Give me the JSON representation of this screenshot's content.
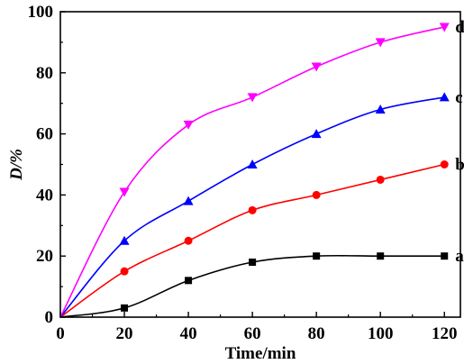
{
  "chart_data": {
    "type": "line",
    "xlabel": "Time/min",
    "ylabel": "D/%",
    "xlim": [
      0,
      125
    ],
    "ylim": [
      0,
      100
    ],
    "xticks": [
      0,
      20,
      40,
      60,
      80,
      100,
      120
    ],
    "yticks": [
      0,
      20,
      40,
      60,
      80,
      100
    ],
    "grid": false,
    "x": [
      0,
      20,
      40,
      60,
      80,
      100,
      120
    ],
    "series": [
      {
        "name": "a",
        "marker": "square",
        "color": "#000000",
        "values": [
          0,
          3,
          12,
          18,
          20,
          20,
          20
        ]
      },
      {
        "name": "b",
        "marker": "circle",
        "color": "#ff0000",
        "values": [
          0,
          15,
          25,
          35,
          40,
          45,
          50
        ]
      },
      {
        "name": "c",
        "marker": "triangle-up",
        "color": "#0000ff",
        "values": [
          0,
          25,
          38,
          50,
          60,
          68,
          72
        ]
      },
      {
        "name": "d",
        "marker": "triangle-down",
        "color": "#ff00ff",
        "values": [
          0,
          41,
          63,
          72,
          82,
          90,
          95
        ]
      }
    ]
  }
}
